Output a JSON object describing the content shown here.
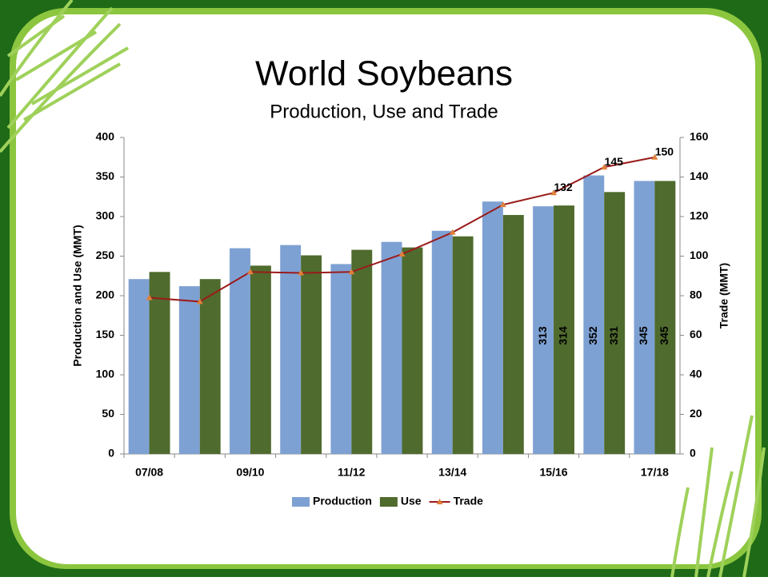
{
  "chart_data": {
    "type": "bar-line",
    "title": "World Soybeans",
    "subtitle": "Production, Use and Trade",
    "y_label": "Production and Use (MMT)",
    "y2_label": "Trade (MMT)",
    "categories": [
      "07/08",
      null,
      "09/10",
      null,
      "11/12",
      null,
      "13/14",
      null,
      "15/16",
      null,
      "17/18"
    ],
    "series": [
      {
        "name": "Production",
        "type": "bar",
        "color": "#7ea1d3",
        "values": [
          221,
          212,
          260,
          264,
          240,
          268,
          282,
          319,
          313,
          352,
          345
        ],
        "value_labels": [
          null,
          null,
          null,
          null,
          null,
          null,
          null,
          null,
          "313",
          "352",
          "345"
        ]
      },
      {
        "name": "Use",
        "type": "bar",
        "color": "#4f6b2d",
        "values": [
          230,
          221,
          238,
          251,
          258,
          261,
          275,
          302,
          314,
          331,
          345
        ],
        "value_labels": [
          null,
          null,
          null,
          null,
          null,
          null,
          null,
          null,
          "314",
          "331",
          "345"
        ]
      },
      {
        "name": "Trade",
        "type": "line",
        "axis": "y2",
        "color": "#9b1b1b",
        "marker_color": "#e0803a",
        "values": [
          79,
          77,
          92,
          91.5,
          92,
          101,
          112,
          126,
          132,
          145,
          150
        ],
        "value_labels": [
          null,
          null,
          null,
          null,
          null,
          null,
          null,
          null,
          "132",
          "145",
          "150"
        ]
      }
    ],
    "ylim": [
      0,
      400
    ],
    "yticks": [
      0,
      50,
      100,
      150,
      200,
      250,
      300,
      350,
      400
    ],
    "y2lim": [
      0,
      160
    ],
    "y2ticks": [
      0,
      20,
      40,
      60,
      80,
      100,
      120,
      140,
      160
    ],
    "grid": false,
    "legend": "bottom"
  }
}
